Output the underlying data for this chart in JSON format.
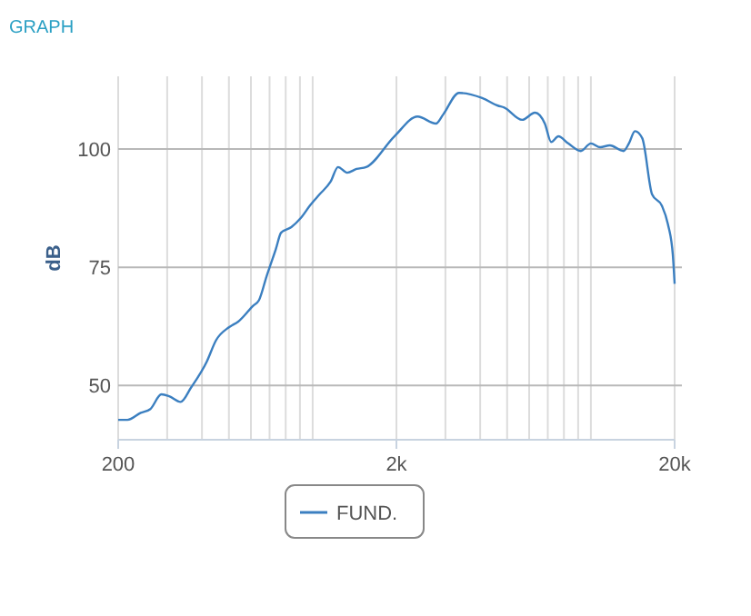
{
  "chart_data": {
    "type": "line",
    "title": "GRAPH",
    "ylabel": "dB",
    "log": "x",
    "xlim": [
      200,
      20000
    ],
    "ylim": [
      38.5,
      115.4
    ],
    "xticks": [
      {
        "value": 200,
        "label": "200"
      },
      {
        "value": 300,
        "label": null
      },
      {
        "value": 400,
        "label": null
      },
      {
        "value": 500,
        "label": null
      },
      {
        "value": 600,
        "label": null
      },
      {
        "value": 700,
        "label": null
      },
      {
        "value": 800,
        "label": null
      },
      {
        "value": 900,
        "label": null
      },
      {
        "value": 1000,
        "label": null
      },
      {
        "value": 2000,
        "label": "2k"
      },
      {
        "value": 3000,
        "label": null
      },
      {
        "value": 4000,
        "label": null
      },
      {
        "value": 5000,
        "label": null
      },
      {
        "value": 6000,
        "label": null
      },
      {
        "value": 7000,
        "label": null
      },
      {
        "value": 8000,
        "label": null
      },
      {
        "value": 9000,
        "label": null
      },
      {
        "value": 10000,
        "label": null
      },
      {
        "value": 20000,
        "label": "20k"
      }
    ],
    "yticks": [
      50,
      75,
      100
    ],
    "grid": true,
    "legend": "bottom",
    "marker": "none",
    "line_style": "solid",
    "series": [
      {
        "name": "FUND.",
        "color": "#3b7fc0",
        "x": [
          200,
          216,
          241,
          261,
          286,
          305,
          335,
          366,
          416,
          450,
          500,
          540,
          612,
          641,
          683,
          737,
          770,
          838,
          906,
          979,
          1058,
          1160,
          1234,
          1330,
          1438,
          1557,
          1967,
          2383,
          2772,
          2944,
          3357,
          4067,
          4630,
          4880,
          5660,
          6300,
          6830,
          7200,
          7640,
          8290,
          9200,
          10000,
          10800,
          11700,
          13100,
          13700,
          14400,
          15300,
          16600,
          18000,
          18900,
          19700,
          20000
        ],
        "values": [
          42.7,
          42.7,
          44.2,
          45,
          48.1,
          47.7,
          46.5,
          49.6,
          55,
          59.6,
          62.3,
          63.5,
          66.9,
          68,
          73.1,
          78.8,
          82.3,
          83.5,
          85.4,
          88.1,
          90.4,
          93.1,
          96.2,
          95,
          95.8,
          96.2,
          102.7,
          106.9,
          105.4,
          107.3,
          111.9,
          110.8,
          109.2,
          108.8,
          106.2,
          107.7,
          105.4,
          101.5,
          102.7,
          101.2,
          99.6,
          101.2,
          100.4,
          100.8,
          99.6,
          101.2,
          103.8,
          102.3,
          90.4,
          88,
          84.2,
          77.7,
          71.5
        ]
      }
    ]
  }
}
